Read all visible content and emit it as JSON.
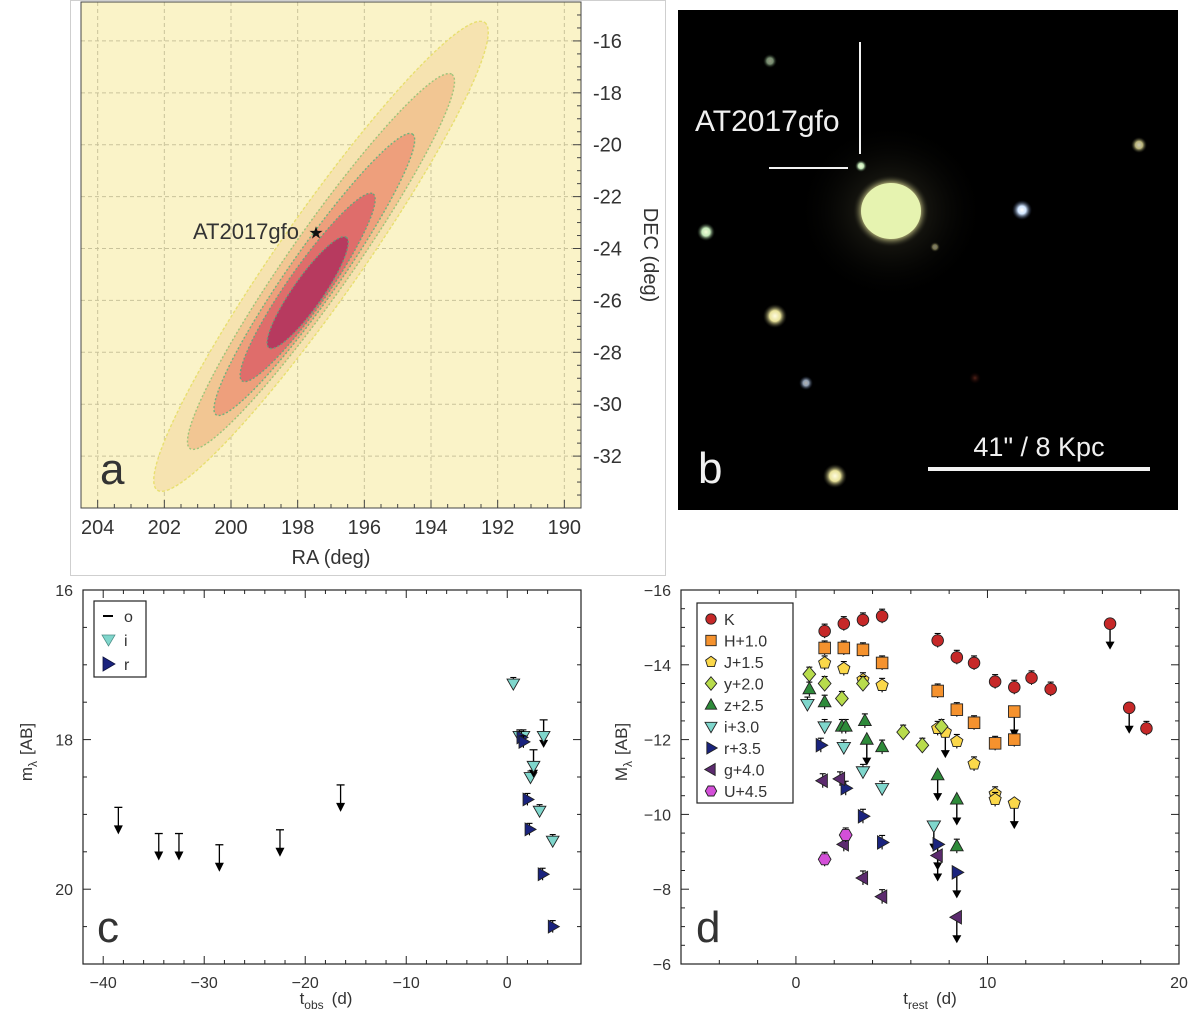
{
  "panels": {
    "a": {
      "letter": "a",
      "xlabel": "RA (deg)",
      "ylabel": "DEC (deg)",
      "x_ticks": [
        "204",
        "202",
        "200",
        "198",
        "196",
        "194",
        "192",
        "190"
      ],
      "y_ticks": [
        "-16",
        "-18",
        "-20",
        "-22",
        "-24",
        "-26",
        "-28",
        "-30",
        "-32"
      ],
      "annotation": "AT2017gfo",
      "background_color": "#faf3c8",
      "contour_colors": [
        "#f6e3b0",
        "#f2c693",
        "#ee9f7c",
        "#df6d6b",
        "#b73a5f"
      ]
    },
    "b": {
      "letter": "b",
      "label": "AT2017gfo",
      "scale_label": "41\" / 8 Kpc"
    },
    "c": {
      "letter": "c",
      "xlabel_main": "t",
      "xlabel_sub": "obs",
      "xlabel_unit": "(d)",
      "ylabel_main": "m",
      "ylabel_sub": "λ",
      "ylabel_unit": "[AB]",
      "x_ticks": [
        "−40",
        "−30",
        "−20",
        "−10",
        "0"
      ],
      "y_ticks": [
        "16",
        "18",
        "20"
      ],
      "legend": [
        {
          "label": "o",
          "marker": "dash",
          "color": "#000000"
        },
        {
          "label": "i",
          "marker": "tri-down",
          "color": "#7fd6cc"
        },
        {
          "label": "r",
          "marker": "tri-right",
          "color": "#1a237e"
        }
      ]
    },
    "d": {
      "letter": "d",
      "xlabel_main": "t",
      "xlabel_sub": "rest",
      "xlabel_unit": "(d)",
      "ylabel_main": "M",
      "ylabel_sub": "λ",
      "ylabel_unit": "[AB]",
      "x_ticks": [
        "0",
        "10",
        "20"
      ],
      "y_ticks": [
        "−16",
        "−14",
        "−12",
        "−10",
        "−8",
        "−6"
      ],
      "legend": [
        {
          "label": "K",
          "marker": "circle",
          "color": "#c62828"
        },
        {
          "label": "H+1.0",
          "marker": "square",
          "color": "#f5922e"
        },
        {
          "label": "J+1.5",
          "marker": "pentagon",
          "color": "#fbd84a"
        },
        {
          "label": "y+2.0",
          "marker": "diamond",
          "color": "#b8dc4c"
        },
        {
          "label": "z+2.5",
          "marker": "tri-up",
          "color": "#2e8b3a"
        },
        {
          "label": "i+3.0",
          "marker": "tri-down",
          "color": "#7fd6cc"
        },
        {
          "label": "r+3.5",
          "marker": "tri-right",
          "color": "#1a237e"
        },
        {
          "label": "g+4.0",
          "marker": "tri-left",
          "color": "#5b2a6e"
        },
        {
          "label": "U+4.5",
          "marker": "hexagon",
          "color": "#d34fd8"
        }
      ]
    }
  },
  "chart_data": [
    {
      "panel": "a",
      "type": "heatmap",
      "xlabel": "RA (deg)",
      "ylabel": "DEC (deg)",
      "xlim": [
        204.5,
        189.5
      ],
      "ylim": [
        -34,
        -14.5
      ],
      "x_ticks": [
        204,
        202,
        200,
        198,
        196,
        194,
        192,
        190
      ],
      "y_ticks": [
        -16,
        -18,
        -20,
        -22,
        -24,
        -26,
        -28,
        -30,
        -32
      ],
      "grid": true,
      "annotations": [
        {
          "text": "AT2017gfo",
          "x": 197.45,
          "y": -23.38
        }
      ],
      "levels": [
        {
          "center": [
            197.3,
            -24.3
          ],
          "semi_axes": [
            11.0,
            1.25
          ],
          "fill": "#f6e3b0",
          "stroke": "#e8df70"
        },
        {
          "center": [
            197.3,
            -24.5
          ],
          "semi_axes": [
            8.8,
            0.95
          ],
          "fill": "#f2c693",
          "stroke": "#9cc47a"
        },
        {
          "center": [
            197.5,
            -25.0
          ],
          "semi_axes": [
            6.6,
            0.75
          ],
          "fill": "#ee9f7c",
          "stroke": "#6fb37c"
        },
        {
          "center": [
            197.7,
            -25.5
          ],
          "semi_axes": [
            4.4,
            0.6
          ],
          "fill": "#df6d6b",
          "stroke": "#6aa37a"
        },
        {
          "center": [
            197.7,
            -25.7
          ],
          "semi_axes": [
            2.6,
            0.45
          ],
          "fill": "#b73a5f",
          "stroke": "#6a9a7a"
        }
      ]
    },
    {
      "panel": "c",
      "type": "scatter",
      "xlabel": "t_obs (d)",
      "ylabel": "m_λ [AB]",
      "xlim": [
        -42,
        7.3
      ],
      "ylim": [
        16,
        21
      ],
      "y_inverted": true,
      "legend_position": "top-left",
      "series": [
        {
          "name": "o",
          "marker": "limit",
          "color": "#000000",
          "points": [
            [
              -38.5,
              19.2
            ],
            [
              -34.5,
              19.55
            ],
            [
              -32.5,
              19.55
            ],
            [
              -28.5,
              19.7
            ],
            [
              -22.5,
              19.5
            ],
            [
              -16.5,
              18.9
            ]
          ]
        },
        {
          "name": "i",
          "marker": "tri-down",
          "color": "#7fd6cc",
          "points": [
            [
              0.6,
              17.25
            ],
            [
              1.2,
              17.95
            ],
            [
              1.6,
              17.95
            ],
            [
              2.3,
              18.5
            ],
            [
              2.6,
              18.35
            ],
            [
              3.2,
              18.95
            ],
            [
              3.6,
              17.95
            ],
            [
              4.5,
              19.35
            ]
          ],
          "limits": [
            [
              2.6,
              18.35
            ],
            [
              3.6,
              17.95
            ]
          ]
        },
        {
          "name": "r",
          "marker": "tri-right",
          "color": "#1a237e",
          "points": [
            [
              1.4,
              17.97
            ],
            [
              1.6,
              18.03
            ],
            [
              2.0,
              18.8
            ],
            [
              2.2,
              19.2
            ],
            [
              3.5,
              19.8
            ],
            [
              4.5,
              20.5
            ]
          ]
        }
      ]
    },
    {
      "panel": "d",
      "type": "scatter",
      "xlabel": "t_rest (d)",
      "ylabel": "M_λ [AB]",
      "xlim": [
        -6,
        20
      ],
      "ylim": [
        -16,
        -6
      ],
      "x_ticks": [
        0,
        10,
        20
      ],
      "y_ticks": [
        -16,
        -14,
        -12,
        -10,
        -8,
        -6
      ],
      "legend_position": "top-left",
      "series": [
        {
          "name": "K",
          "color": "#c62828",
          "points": [
            [
              1.5,
              -14.9
            ],
            [
              2.5,
              -15.1
            ],
            [
              3.5,
              -15.2
            ],
            [
              4.5,
              -15.3
            ],
            [
              7.4,
              -14.65
            ],
            [
              8.4,
              -14.2
            ],
            [
              9.3,
              -14.05
            ],
            [
              10.4,
              -13.55
            ],
            [
              11.4,
              -13.4
            ],
            [
              12.3,
              -13.65
            ],
            [
              13.3,
              -13.35
            ],
            [
              16.4,
              -15.1
            ],
            [
              17.4,
              -12.85
            ],
            [
              18.3,
              -12.3
            ]
          ],
          "limits": [
            [
              16.4,
              -15.1
            ],
            [
              17.4,
              -12.85
            ]
          ]
        },
        {
          "name": "H+1.0",
          "color": "#f5922e",
          "points": [
            [
              1.5,
              -14.45
            ],
            [
              2.5,
              -14.45
            ],
            [
              3.5,
              -14.4
            ],
            [
              4.5,
              -14.05
            ],
            [
              7.4,
              -13.3
            ],
            [
              8.4,
              -12.8
            ],
            [
              9.3,
              -12.45
            ],
            [
              10.4,
              -11.9
            ],
            [
              11.4,
              -12.75
            ],
            [
              11.4,
              -12.0
            ]
          ],
          "limits": [
            [
              11.4,
              -12.75
            ]
          ]
        },
        {
          "name": "J+1.5",
          "color": "#fbd84a",
          "points": [
            [
              1.5,
              -14.05
            ],
            [
              2.5,
              -13.9
            ],
            [
              3.5,
              -13.6
            ],
            [
              4.5,
              -13.45
            ],
            [
              7.4,
              -12.3
            ],
            [
              7.8,
              -12.2
            ],
            [
              8.4,
              -11.95
            ],
            [
              9.3,
              -11.35
            ],
            [
              10.4,
              -10.55
            ],
            [
              10.4,
              -10.4
            ],
            [
              11.4,
              -10.3
            ]
          ],
          "limits": [
            [
              7.8,
              -12.2
            ],
            [
              11.4,
              -10.3
            ]
          ]
        },
        {
          "name": "y+2.0",
          "color": "#b8dc4c",
          "points": [
            [
              0.7,
              -13.75
            ],
            [
              1.5,
              -13.5
            ],
            [
              2.4,
              -13.1
            ],
            [
              3.5,
              -13.5
            ],
            [
              5.6,
              -12.2
            ],
            [
              6.6,
              -11.85
            ],
            [
              7.6,
              -12.35
            ]
          ]
        },
        {
          "name": "z+2.5",
          "color": "#2e8b3a",
          "points": [
            [
              0.7,
              -13.35
            ],
            [
              1.5,
              -13.0
            ],
            [
              2.4,
              -12.35
            ],
            [
              2.6,
              -12.35
            ],
            [
              3.6,
              -12.5
            ],
            [
              3.7,
              -12.0
            ],
            [
              4.5,
              -11.8
            ],
            [
              7.4,
              -11.05
            ],
            [
              8.4,
              -10.4
            ],
            [
              8.4,
              -9.15
            ]
          ],
          "limits": [
            [
              3.7,
              -12.0
            ],
            [
              7.4,
              -11.05
            ],
            [
              8.4,
              -10.4
            ]
          ]
        },
        {
          "name": "i+3.0",
          "color": "#7fd6cc",
          "points": [
            [
              0.6,
              -12.95
            ],
            [
              1.5,
              -12.35
            ],
            [
              2.5,
              -11.8
            ],
            [
              3.5,
              -11.15
            ],
            [
              4.5,
              -10.7
            ],
            [
              7.2,
              -9.7
            ]
          ],
          "limits": [
            [
              7.2,
              -9.7
            ]
          ]
        },
        {
          "name": "r+3.5",
          "color": "#1a237e",
          "points": [
            [
              1.3,
              -11.85
            ],
            [
              2.6,
              -10.7
            ],
            [
              3.5,
              -9.95
            ],
            [
              4.5,
              -9.25
            ],
            [
              7.4,
              -9.2
            ],
            [
              8.4,
              -8.45
            ]
          ],
          "limits": [
            [
              7.4,
              -9.2
            ],
            [
              8.4,
              -8.45
            ]
          ]
        },
        {
          "name": "g+4.0",
          "color": "#5b2a6e",
          "points": [
            [
              1.4,
              -10.9
            ],
            [
              2.3,
              -10.95
            ],
            [
              2.5,
              -9.2
            ],
            [
              3.5,
              -8.3
            ],
            [
              4.5,
              -7.8
            ],
            [
              7.4,
              -8.9
            ],
            [
              8.4,
              -7.25
            ]
          ],
          "limits": [
            [
              7.4,
              -8.9
            ],
            [
              8.4,
              -7.25
            ]
          ]
        },
        {
          "name": "U+4.5",
          "color": "#d34fd8",
          "points": [
            [
              1.5,
              -8.8
            ],
            [
              2.6,
              -9.45
            ]
          ]
        }
      ]
    }
  ]
}
